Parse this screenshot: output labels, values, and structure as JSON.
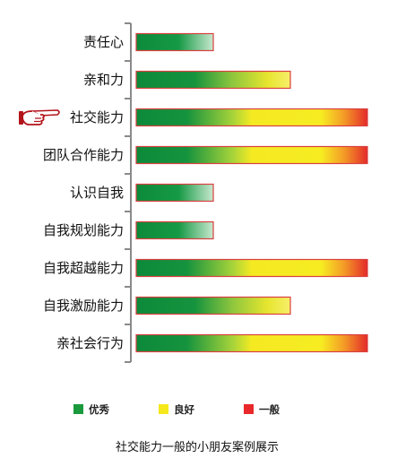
{
  "chart_data": {
    "type": "bar",
    "orientation": "horizontal",
    "categories": [
      "责任心",
      "亲和力",
      "社交能力",
      "团队合作能力",
      "认识自我",
      "自我规划能力",
      "自我超越能力",
      "自我激励能力",
      "亲社会行为"
    ],
    "values": [
      1,
      2,
      3,
      3,
      1,
      1,
      3,
      2,
      3
    ],
    "xlim": [
      0,
      3
    ],
    "highlighted_category": "社交能力",
    "legend": {
      "placement": "bottom",
      "items": [
        {
          "label": "优秀",
          "color": "#1a9a3c"
        },
        {
          "label": "良好",
          "color": "#f5e81c"
        },
        {
          "label": "一般",
          "color": "#e8282b"
        }
      ]
    },
    "caption": "社交能力一般的小朋友案例展示",
    "colors": {
      "green": "#0c8a3a",
      "yellow": "#f7ec22",
      "red": "#e42a2a",
      "bar_border": "#d94040",
      "pointer": "#b3141b",
      "axis": "#8a8a8a"
    },
    "icons": {
      "pointer": "pointing-hand-icon"
    }
  }
}
